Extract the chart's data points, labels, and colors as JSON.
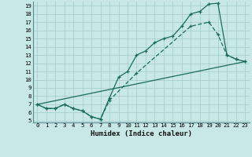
{
  "title": "",
  "xlabel": "Humidex (Indice chaleur)",
  "ylabel": "",
  "background_color": "#c8e8e8",
  "grid_color": "#a8cece",
  "line_color": "#1a6b5a",
  "xlim": [
    -0.5,
    23.5
  ],
  "ylim": [
    4.8,
    19.5
  ],
  "xticks": [
    0,
    1,
    2,
    3,
    4,
    5,
    6,
    7,
    8,
    9,
    10,
    11,
    12,
    13,
    14,
    15,
    16,
    17,
    18,
    19,
    20,
    21,
    22,
    23
  ],
  "yticks": [
    5,
    6,
    7,
    8,
    9,
    10,
    11,
    12,
    13,
    14,
    15,
    16,
    17,
    18,
    19
  ],
  "curve1_x": [
    0,
    1,
    2,
    3,
    4,
    5,
    6,
    7,
    8,
    9,
    10,
    11,
    12,
    13,
    14,
    15,
    16,
    17,
    18,
    19,
    20,
    21,
    22,
    23
  ],
  "curve1_y": [
    7.0,
    6.5,
    6.5,
    7.0,
    6.5,
    6.2,
    5.5,
    5.2,
    7.8,
    10.3,
    11.0,
    13.0,
    13.5,
    14.5,
    15.0,
    15.3,
    16.5,
    18.0,
    18.3,
    19.2,
    19.3,
    13.0,
    12.5,
    12.2
  ],
  "curve2_x": [
    0,
    1,
    2,
    3,
    4,
    5,
    6,
    7,
    8,
    11,
    17,
    19,
    20,
    21,
    22,
    23
  ],
  "curve2_y": [
    7.0,
    6.5,
    6.5,
    7.0,
    6.5,
    6.2,
    5.5,
    5.2,
    7.5,
    10.8,
    16.5,
    17.0,
    15.5,
    13.0,
    12.5,
    12.2
  ],
  "curve3_x": [
    0,
    23
  ],
  "curve3_y": [
    7.0,
    12.2
  ]
}
